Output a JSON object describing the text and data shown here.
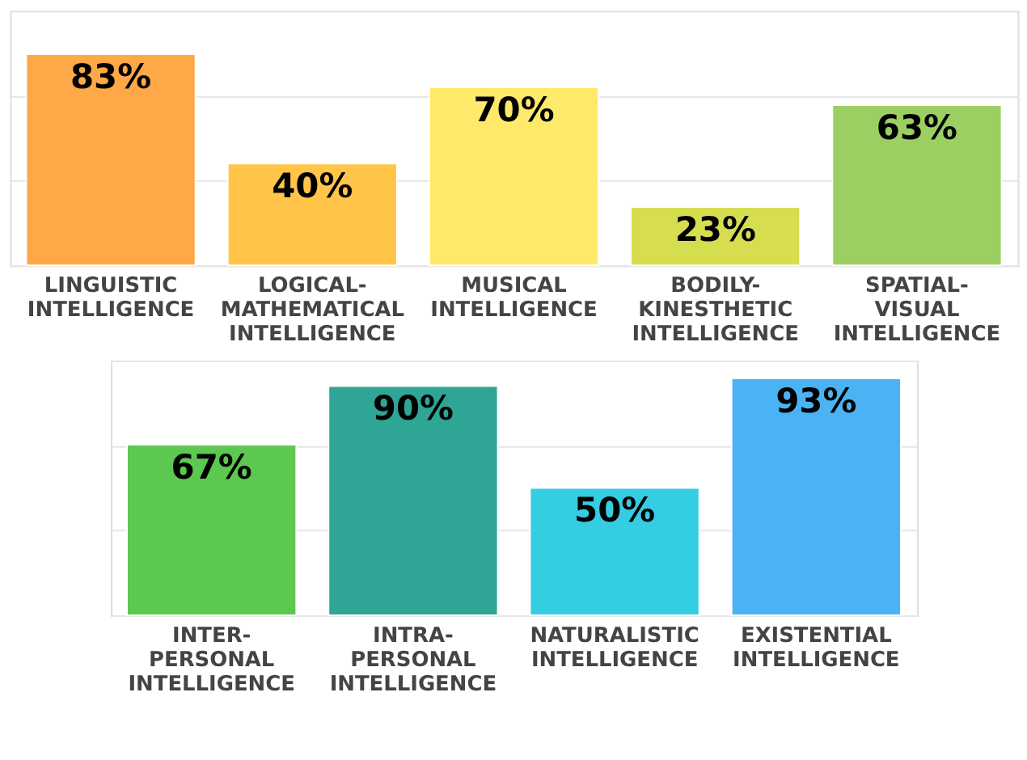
{
  "chart_data": [
    {
      "type": "bar",
      "categories": [
        "LINGUISTIC INTELLIGENCE",
        "LOGICAL-MATHEMATICAL INTELLIGENCE",
        "MUSICAL INTELLIGENCE",
        "BODILY-KINESTHETIC INTELLIGENCE",
        "SPATIAL-VISUAL INTELLIGENCE"
      ],
      "values": [
        83,
        40,
        70,
        23,
        63
      ],
      "value_labels": [
        "83%",
        "40%",
        "70%",
        "23%",
        "63%"
      ],
      "colors": [
        "#ffa847",
        "#ffc448",
        "#ffe96a",
        "#d6dd4f",
        "#9ccf62"
      ],
      "ylim": [
        0,
        100
      ],
      "yticks": [
        {
          "value": 0,
          "label": null
        },
        {
          "value": 33.3,
          "label": null
        },
        {
          "value": 66.7,
          "label": null
        },
        {
          "value": 100,
          "label": null
        }
      ],
      "tick_labels": "x",
      "grid": "y"
    },
    {
      "type": "bar",
      "categories": [
        "INTER-PERSONAL INTELLIGENCE",
        "INTRA-PERSONAL INTELLIGENCE",
        "NATURALISTIC INTELLIGENCE",
        "EXISTENTIAL INTELLIGENCE"
      ],
      "values": [
        67,
        90,
        50,
        93
      ],
      "value_labels": [
        "67%",
        "90%",
        "50%",
        "93%"
      ],
      "colors": [
        "#5cc84f",
        "#2fa595",
        "#35cde2",
        "#4bb3f4"
      ],
      "ylim": [
        0,
        100
      ],
      "yticks": [
        {
          "value": 0,
          "label": null
        },
        {
          "value": 33.3,
          "label": null
        },
        {
          "value": 66.7,
          "label": null
        },
        {
          "value": 100,
          "label": null
        }
      ],
      "tick_labels": "x",
      "grid": "y"
    }
  ]
}
